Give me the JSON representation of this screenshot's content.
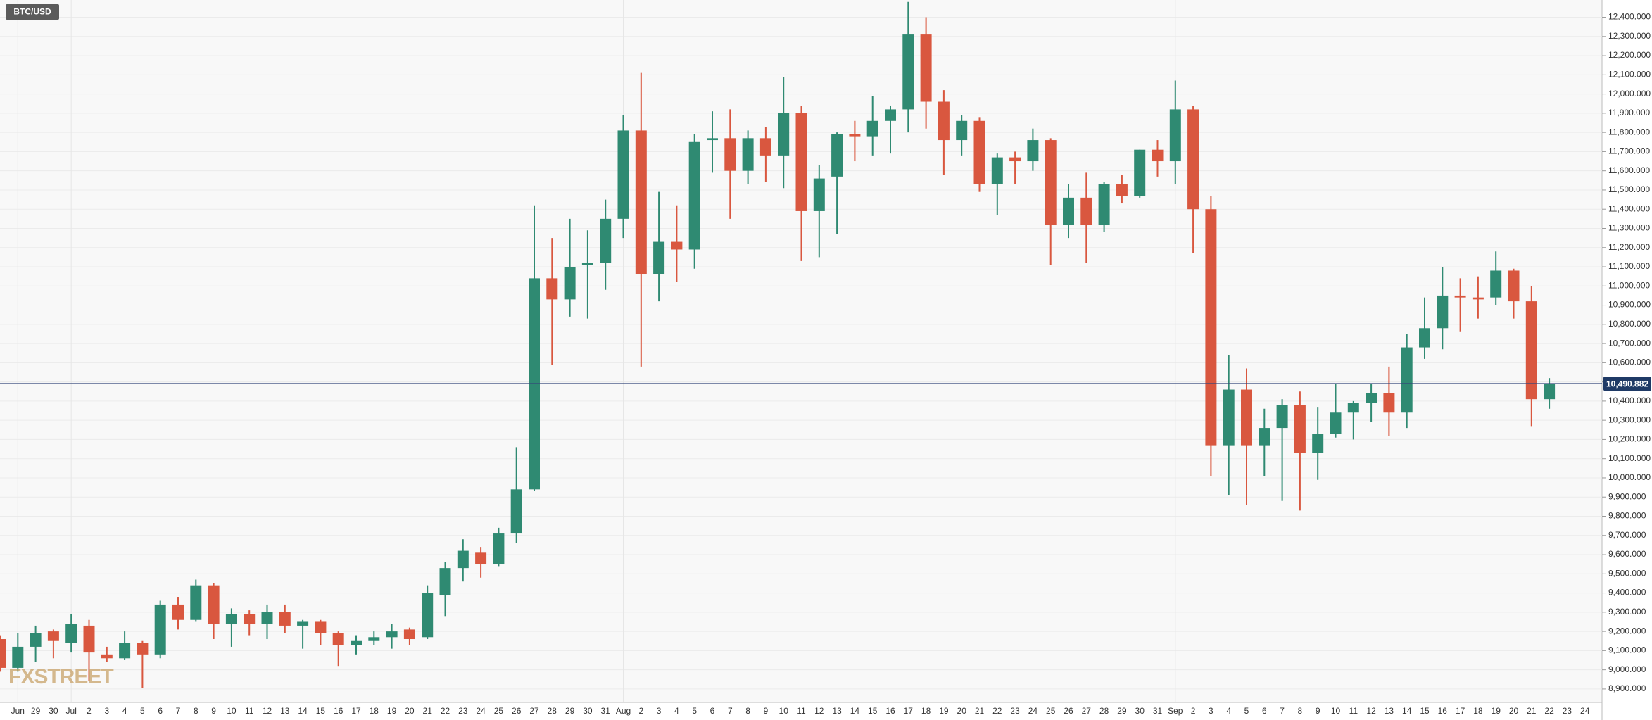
{
  "chart_data": {
    "type": "candlestick",
    "symbol": "BTC/USD",
    "logo": "FXSTREET",
    "up_color": "#2f8a72",
    "down_color": "#d9573f",
    "grid": true,
    "ylim": [
      8830,
      12490
    ],
    "yticks": [
      {
        "value": 8900,
        "label": "8,900.000"
      },
      {
        "value": 9000,
        "label": "9,000.000"
      },
      {
        "value": 9100,
        "label": "9,100.000"
      },
      {
        "value": 9200,
        "label": "9,200.000"
      },
      {
        "value": 9300,
        "label": "9,300.000"
      },
      {
        "value": 9400,
        "label": "9,400.000"
      },
      {
        "value": 9500,
        "label": "9,500.000"
      },
      {
        "value": 9600,
        "label": "9,600.000"
      },
      {
        "value": 9700,
        "label": "9,700.000"
      },
      {
        "value": 9800,
        "label": "9,800.000"
      },
      {
        "value": 9900,
        "label": "9,900.000"
      },
      {
        "value": 10000,
        "label": "10,000.000"
      },
      {
        "value": 10100,
        "label": "10,100.000"
      },
      {
        "value": 10200,
        "label": "10,200.000"
      },
      {
        "value": 10300,
        "label": "10,300.000"
      },
      {
        "value": 10400,
        "label": "10,400.000"
      },
      {
        "value": 10500,
        "label": "10,500.000"
      },
      {
        "value": 10600,
        "label": "10,600.000"
      },
      {
        "value": 10700,
        "label": "10,700.000"
      },
      {
        "value": 10800,
        "label": "10,800.000"
      },
      {
        "value": 10900,
        "label": "10,900.000"
      },
      {
        "value": 11000,
        "label": "11,000.000"
      },
      {
        "value": 11100,
        "label": "11,100.000"
      },
      {
        "value": 11200,
        "label": "11,200.000"
      },
      {
        "value": 11300,
        "label": "11,300.000"
      },
      {
        "value": 11400,
        "label": "11,400.000"
      },
      {
        "value": 11500,
        "label": "11,500.000"
      },
      {
        "value": 11600,
        "label": "11,600.000"
      },
      {
        "value": 11700,
        "label": "11,700.000"
      },
      {
        "value": 11800,
        "label": "11,800.000"
      },
      {
        "value": 11900,
        "label": "11,900.000"
      },
      {
        "value": 12000,
        "label": "12,000.000"
      },
      {
        "value": 12100,
        "label": "12,100.000"
      },
      {
        "value": 12200,
        "label": "12,200.000"
      },
      {
        "value": 12300,
        "label": "12,300.000"
      },
      {
        "value": 12400,
        "label": "12,400.000"
      }
    ],
    "current_price": {
      "value": 10490.882,
      "label": "10,490.882"
    },
    "categories": [
      null,
      "Jun",
      "29",
      "30",
      "Jul",
      "2",
      "3",
      "4",
      "5",
      "6",
      "7",
      "8",
      "9",
      "10",
      "11",
      "12",
      "13",
      "14",
      "15",
      "16",
      "17",
      "18",
      "19",
      "20",
      "21",
      "22",
      "23",
      "24",
      "25",
      "26",
      "27",
      "28",
      "29",
      "30",
      "31",
      "Aug",
      "2",
      "3",
      "4",
      "5",
      "6",
      "7",
      "8",
      "9",
      "10",
      "11",
      "12",
      "13",
      "14",
      "15",
      "16",
      "17",
      "18",
      "19",
      "20",
      "21",
      "22",
      "23",
      "24",
      "25",
      "26",
      "27",
      "28",
      "29",
      "30",
      "31",
      "Sep",
      "2",
      "3",
      "4",
      "5",
      "6",
      "7",
      "8",
      "9",
      "10",
      "11",
      "12",
      "13",
      "14",
      "15",
      "16",
      "17",
      "18",
      "19",
      "20",
      "21",
      "22",
      "23",
      "24"
    ],
    "open": [
      9160,
      9010,
      9120,
      9200,
      9140,
      9230,
      9080,
      9060,
      9140,
      9080,
      9340,
      9260,
      9440,
      9240,
      9290,
      9240,
      9300,
      9230,
      9250,
      9190,
      9130,
      9150,
      9170,
      9210,
      9170,
      9390,
      9530,
      9610,
      9550,
      9710,
      9940,
      11040,
      10930,
      11110,
      11120,
      11350,
      11810,
      11060,
      11230,
      11190,
      11760,
      11770,
      11600,
      11770,
      11680,
      11900,
      11390,
      11570,
      11790,
      11780,
      11860,
      11920,
      12310,
      11960,
      11760,
      11860,
      11530,
      11670,
      11650,
      11760,
      11320,
      11460,
      11320,
      11530,
      11470,
      11710,
      11650,
      11920,
      11400,
      10170,
      10460,
      10170,
      10260,
      10380,
      10130,
      10230,
      10340,
      10390,
      10440,
      10340,
      10680,
      10780,
      10950,
      10940,
      10940,
      11080,
      10920,
      10410,
      null,
      null
    ],
    "high": [
      9180,
      9190,
      9230,
      9210,
      9290,
      9260,
      9120,
      9200,
      9150,
      9360,
      9380,
      9470,
      9450,
      9320,
      9310,
      9340,
      9340,
      9260,
      9260,
      9200,
      9180,
      9200,
      9240,
      9220,
      9440,
      9560,
      9680,
      9640,
      9740,
      10160,
      11420,
      11250,
      11350,
      11290,
      11450,
      11890,
      12110,
      11490,
      11420,
      11790,
      11910,
      11920,
      11810,
      11830,
      12090,
      11940,
      11630,
      11800,
      11860,
      11990,
      11940,
      12480,
      12400,
      12020,
      11890,
      11880,
      11690,
      11700,
      11820,
      11770,
      11530,
      11590,
      11540,
      11580,
      11710,
      11760,
      12070,
      11940,
      11470,
      10640,
      10570,
      10360,
      10410,
      10450,
      10370,
      10490,
      10400,
      10490,
      10580,
      10750,
      10940,
      11100,
      11040,
      11050,
      11180,
      11090,
      11000,
      10520,
      null,
      null
    ],
    "low": [
      8990,
      8990,
      9040,
      9060,
      9090,
      8940,
      9040,
      9050,
      8905,
      9060,
      9210,
      9250,
      9160,
      9120,
      9180,
      9160,
      9190,
      9110,
      9130,
      9020,
      9080,
      9130,
      9110,
      9130,
      9160,
      9280,
      9460,
      9480,
      9540,
      9660,
      9930,
      10590,
      10840,
      10830,
      10980,
      11250,
      10580,
      10920,
      11020,
      11090,
      11590,
      11350,
      11530,
      11540,
      11510,
      11130,
      11150,
      11270,
      11650,
      11680,
      11690,
      11800,
      11820,
      11580,
      11680,
      11490,
      11370,
      11530,
      11600,
      11110,
      11250,
      11120,
      11280,
      11430,
      11460,
      11570,
      11530,
      11170,
      10010,
      9910,
      9860,
      10010,
      9880,
      9830,
      9990,
      10210,
      10200,
      10290,
      10220,
      10260,
      10620,
      10670,
      10760,
      10830,
      10900,
      10830,
      10270,
      10360,
      null,
      null
    ],
    "close": [
      9010,
      9120,
      9190,
      9150,
      9240,
      9090,
      9060,
      9140,
      9080,
      9340,
      9260,
      9440,
      9240,
      9290,
      9240,
      9300,
      9230,
      9250,
      9190,
      9130,
      9150,
      9170,
      9200,
      9160,
      9400,
      9530,
      9620,
      9550,
      9710,
      9940,
      11040,
      10930,
      11100,
      11120,
      11350,
      11810,
      11060,
      11230,
      11190,
      11750,
      11770,
      11600,
      11770,
      11680,
      11900,
      11390,
      11560,
      11790,
      11780,
      11860,
      11920,
      12310,
      11960,
      11760,
      11860,
      11530,
      11670,
      11650,
      11760,
      11320,
      11460,
      11320,
      11530,
      11470,
      11710,
      11650,
      11920,
      11400,
      10170,
      10460,
      10170,
      10260,
      10380,
      10130,
      10230,
      10340,
      10390,
      10440,
      10340,
      10680,
      10780,
      10950,
      10940,
      10930,
      11080,
      10920,
      10410,
      10490,
      null,
      null
    ]
  }
}
